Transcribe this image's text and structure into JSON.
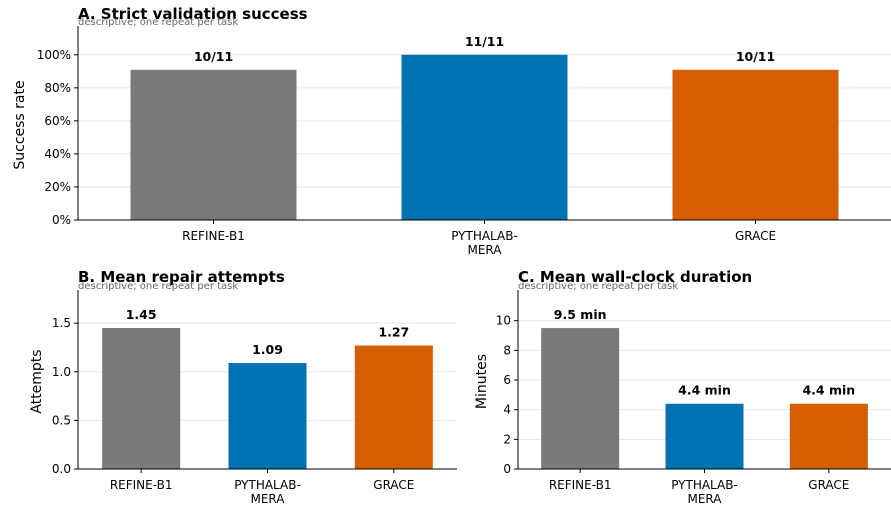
{
  "chart_data": [
    {
      "type": "bar",
      "title": "A. Strict validation success",
      "subtitle": "descriptive; one repeat per task",
      "ylabel": "Success rate",
      "categories": [
        [
          "REFINE-B1"
        ],
        [
          "PYTHALAB-",
          "MERA"
        ],
        [
          "GRACE"
        ]
      ],
      "values": [
        0.9091,
        1.0,
        0.9091
      ],
      "data_labels": [
        "10/11",
        "11/11",
        "10/11"
      ],
      "ylim": [
        0,
        1.15
      ],
      "yticks": [
        0,
        0.2,
        0.4,
        0.6,
        0.8,
        1.0
      ],
      "ytick_labels": [
        "0%",
        "20%",
        "40%",
        "60%",
        "80%",
        "100%"
      ],
      "colors": [
        "#7a7a7a",
        "#0072b2",
        "#d55e00"
      ],
      "grid": true
    },
    {
      "type": "bar",
      "title": "B. Mean repair attempts",
      "subtitle": "descriptive; one repeat per task",
      "ylabel": "Attempts",
      "categories": [
        [
          "REFINE-B1"
        ],
        [
          "PYTHALAB-",
          "MERA"
        ],
        [
          "GRACE"
        ]
      ],
      "values": [
        1.45,
        1.09,
        1.27
      ],
      "data_labels": [
        "1.45",
        "1.09",
        "1.27"
      ],
      "ylim": [
        0,
        1.8
      ],
      "yticks": [
        0,
        0.5,
        1.0,
        1.5
      ],
      "ytick_labels": [
        "0.0",
        "0.5",
        "1.0",
        "1.5"
      ],
      "colors": [
        "#7a7a7a",
        "#0072b2",
        "#d55e00"
      ],
      "grid": true
    },
    {
      "type": "bar",
      "title": "C. Mean wall-clock duration",
      "subtitle": "descriptive; one repeat per task",
      "ylabel": "Minutes",
      "categories": [
        [
          "REFINE-B1"
        ],
        [
          "PYTHALAB-",
          "MERA"
        ],
        [
          "GRACE"
        ]
      ],
      "values": [
        9.5,
        4.4,
        4.4
      ],
      "data_labels": [
        "9.5 min",
        "4.4 min",
        "4.4 min"
      ],
      "ylim": [
        0,
        11.8
      ],
      "yticks": [
        0,
        2,
        4,
        6,
        8,
        10
      ],
      "ytick_labels": [
        "0",
        "2",
        "4",
        "6",
        "8",
        "10"
      ],
      "colors": [
        "#7a7a7a",
        "#0072b2",
        "#d55e00"
      ],
      "grid": true
    }
  ]
}
